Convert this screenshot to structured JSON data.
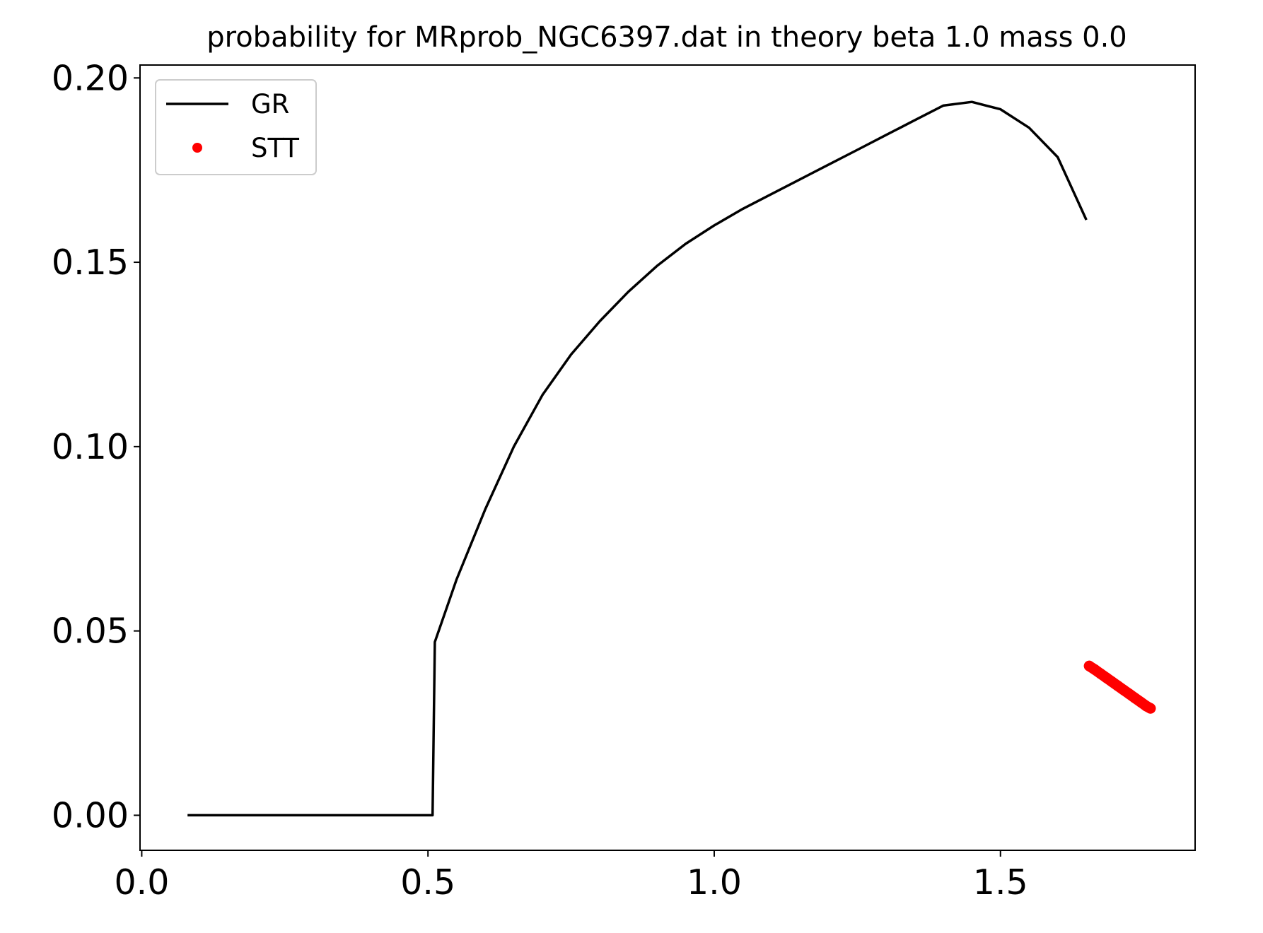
{
  "chart_data": {
    "type": "line",
    "title": "probability for MRprob_NGC6397.dat in theory beta 1.0 mass 0.0",
    "xlabel": "",
    "ylabel": "",
    "xlim": [
      -0.003,
      1.84
    ],
    "ylim": [
      -0.0095,
      0.2035
    ],
    "x_ticks": [
      0.0,
      0.5,
      1.0,
      1.5
    ],
    "x_tick_labels": [
      "0.0",
      "0.5",
      "1.0",
      "1.5"
    ],
    "y_ticks": [
      0.0,
      0.05,
      0.1,
      0.15,
      0.2
    ],
    "y_tick_labels": [
      "0.00",
      "0.05",
      "0.10",
      "0.15",
      "0.20"
    ],
    "grid": false,
    "legend": {
      "position": "top-left"
    },
    "series": [
      {
        "name": "GR",
        "style": "line",
        "color": "#000000",
        "x": [
          0.08,
          0.2,
          0.35,
          0.5,
          0.508,
          0.512,
          0.55,
          0.6,
          0.65,
          0.7,
          0.75,
          0.8,
          0.85,
          0.9,
          0.95,
          1.0,
          1.05,
          1.1,
          1.15,
          1.2,
          1.25,
          1.3,
          1.35,
          1.4,
          1.45,
          1.5,
          1.55,
          1.6,
          1.65
        ],
        "y": [
          0.0,
          0.0,
          0.0,
          0.0,
          0.0,
          0.047,
          0.064,
          0.083,
          0.1,
          0.114,
          0.125,
          0.134,
          0.142,
          0.149,
          0.155,
          0.16,
          0.1645,
          0.1685,
          0.1725,
          0.1765,
          0.1805,
          0.1845,
          0.1885,
          0.1925,
          0.1935,
          0.1915,
          0.1865,
          0.1785,
          0.1615
        ]
      },
      {
        "name": "STT",
        "style": "points",
        "color": "#ff0000",
        "x": [
          1.655,
          1.665,
          1.675,
          1.685,
          1.695,
          1.705,
          1.715,
          1.725,
          1.735,
          1.745,
          1.755,
          1.762
        ],
        "y": [
          0.0405,
          0.0395,
          0.0384,
          0.0373,
          0.0362,
          0.0351,
          0.034,
          0.0329,
          0.0318,
          0.0307,
          0.0296,
          0.029
        ]
      }
    ]
  }
}
